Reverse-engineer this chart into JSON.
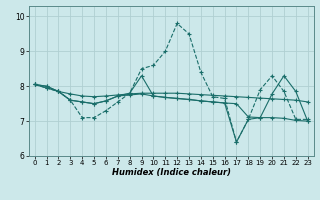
{
  "xlabel": "Humidex (Indice chaleur)",
  "bg_color": "#cce8ea",
  "grid_color": "#b0cfd2",
  "line_color": "#1a6e6a",
  "xlim": [
    -0.5,
    23.5
  ],
  "ylim": [
    6.0,
    10.3
  ],
  "xticks": [
    0,
    1,
    2,
    3,
    4,
    5,
    6,
    7,
    8,
    9,
    10,
    11,
    12,
    13,
    14,
    15,
    16,
    17,
    18,
    19,
    20,
    21,
    22,
    23
  ],
  "yticks": [
    6,
    7,
    8,
    9,
    10
  ],
  "line1_x": [
    0,
    1,
    2,
    3,
    4,
    5,
    6,
    7,
    8,
    9,
    10,
    11,
    12,
    13,
    14,
    15,
    16,
    17,
    18,
    19,
    20,
    21,
    22,
    23
  ],
  "line1_y": [
    8.05,
    7.95,
    7.85,
    7.6,
    7.1,
    7.1,
    7.3,
    7.55,
    7.8,
    8.5,
    8.6,
    9.0,
    9.8,
    9.5,
    8.4,
    7.7,
    7.65,
    6.4,
    7.05,
    7.9,
    8.3,
    7.85,
    7.05,
    7.05
  ],
  "line2_x": [
    0,
    1,
    2,
    3,
    4,
    5,
    6,
    7,
    8,
    9,
    10,
    11,
    12,
    13,
    14,
    15,
    16,
    17,
    18,
    19,
    20,
    21,
    22,
    23
  ],
  "line2_y": [
    8.05,
    8.0,
    7.85,
    7.78,
    7.72,
    7.7,
    7.72,
    7.75,
    7.78,
    7.8,
    7.8,
    7.8,
    7.8,
    7.78,
    7.76,
    7.74,
    7.72,
    7.7,
    7.68,
    7.66,
    7.64,
    7.62,
    7.6,
    7.55
  ],
  "line3_x": [
    0,
    1,
    2,
    3,
    4,
    5,
    6,
    7,
    8,
    9,
    10,
    11,
    12,
    13,
    14,
    15,
    16,
    17,
    18,
    19,
    20,
    21,
    22,
    23
  ],
  "line3_y": [
    8.05,
    8.0,
    7.85,
    7.6,
    7.55,
    7.5,
    7.58,
    7.72,
    7.75,
    7.78,
    7.72,
    7.68,
    7.65,
    7.62,
    7.58,
    7.55,
    7.52,
    7.5,
    7.12,
    7.1,
    7.1,
    7.08,
    7.02,
    7.0
  ],
  "line4_x": [
    0,
    1,
    2,
    3,
    4,
    5,
    6,
    7,
    8,
    9,
    10,
    11,
    12,
    13,
    14,
    15,
    16,
    17,
    18,
    19,
    20,
    21,
    22,
    23
  ],
  "line4_y": [
    8.05,
    7.95,
    7.85,
    7.6,
    7.55,
    7.5,
    7.58,
    7.72,
    7.8,
    8.3,
    7.72,
    7.68,
    7.65,
    7.62,
    7.58,
    7.55,
    7.52,
    6.4,
    7.05,
    7.1,
    7.78,
    8.3,
    7.85,
    7.0
  ]
}
